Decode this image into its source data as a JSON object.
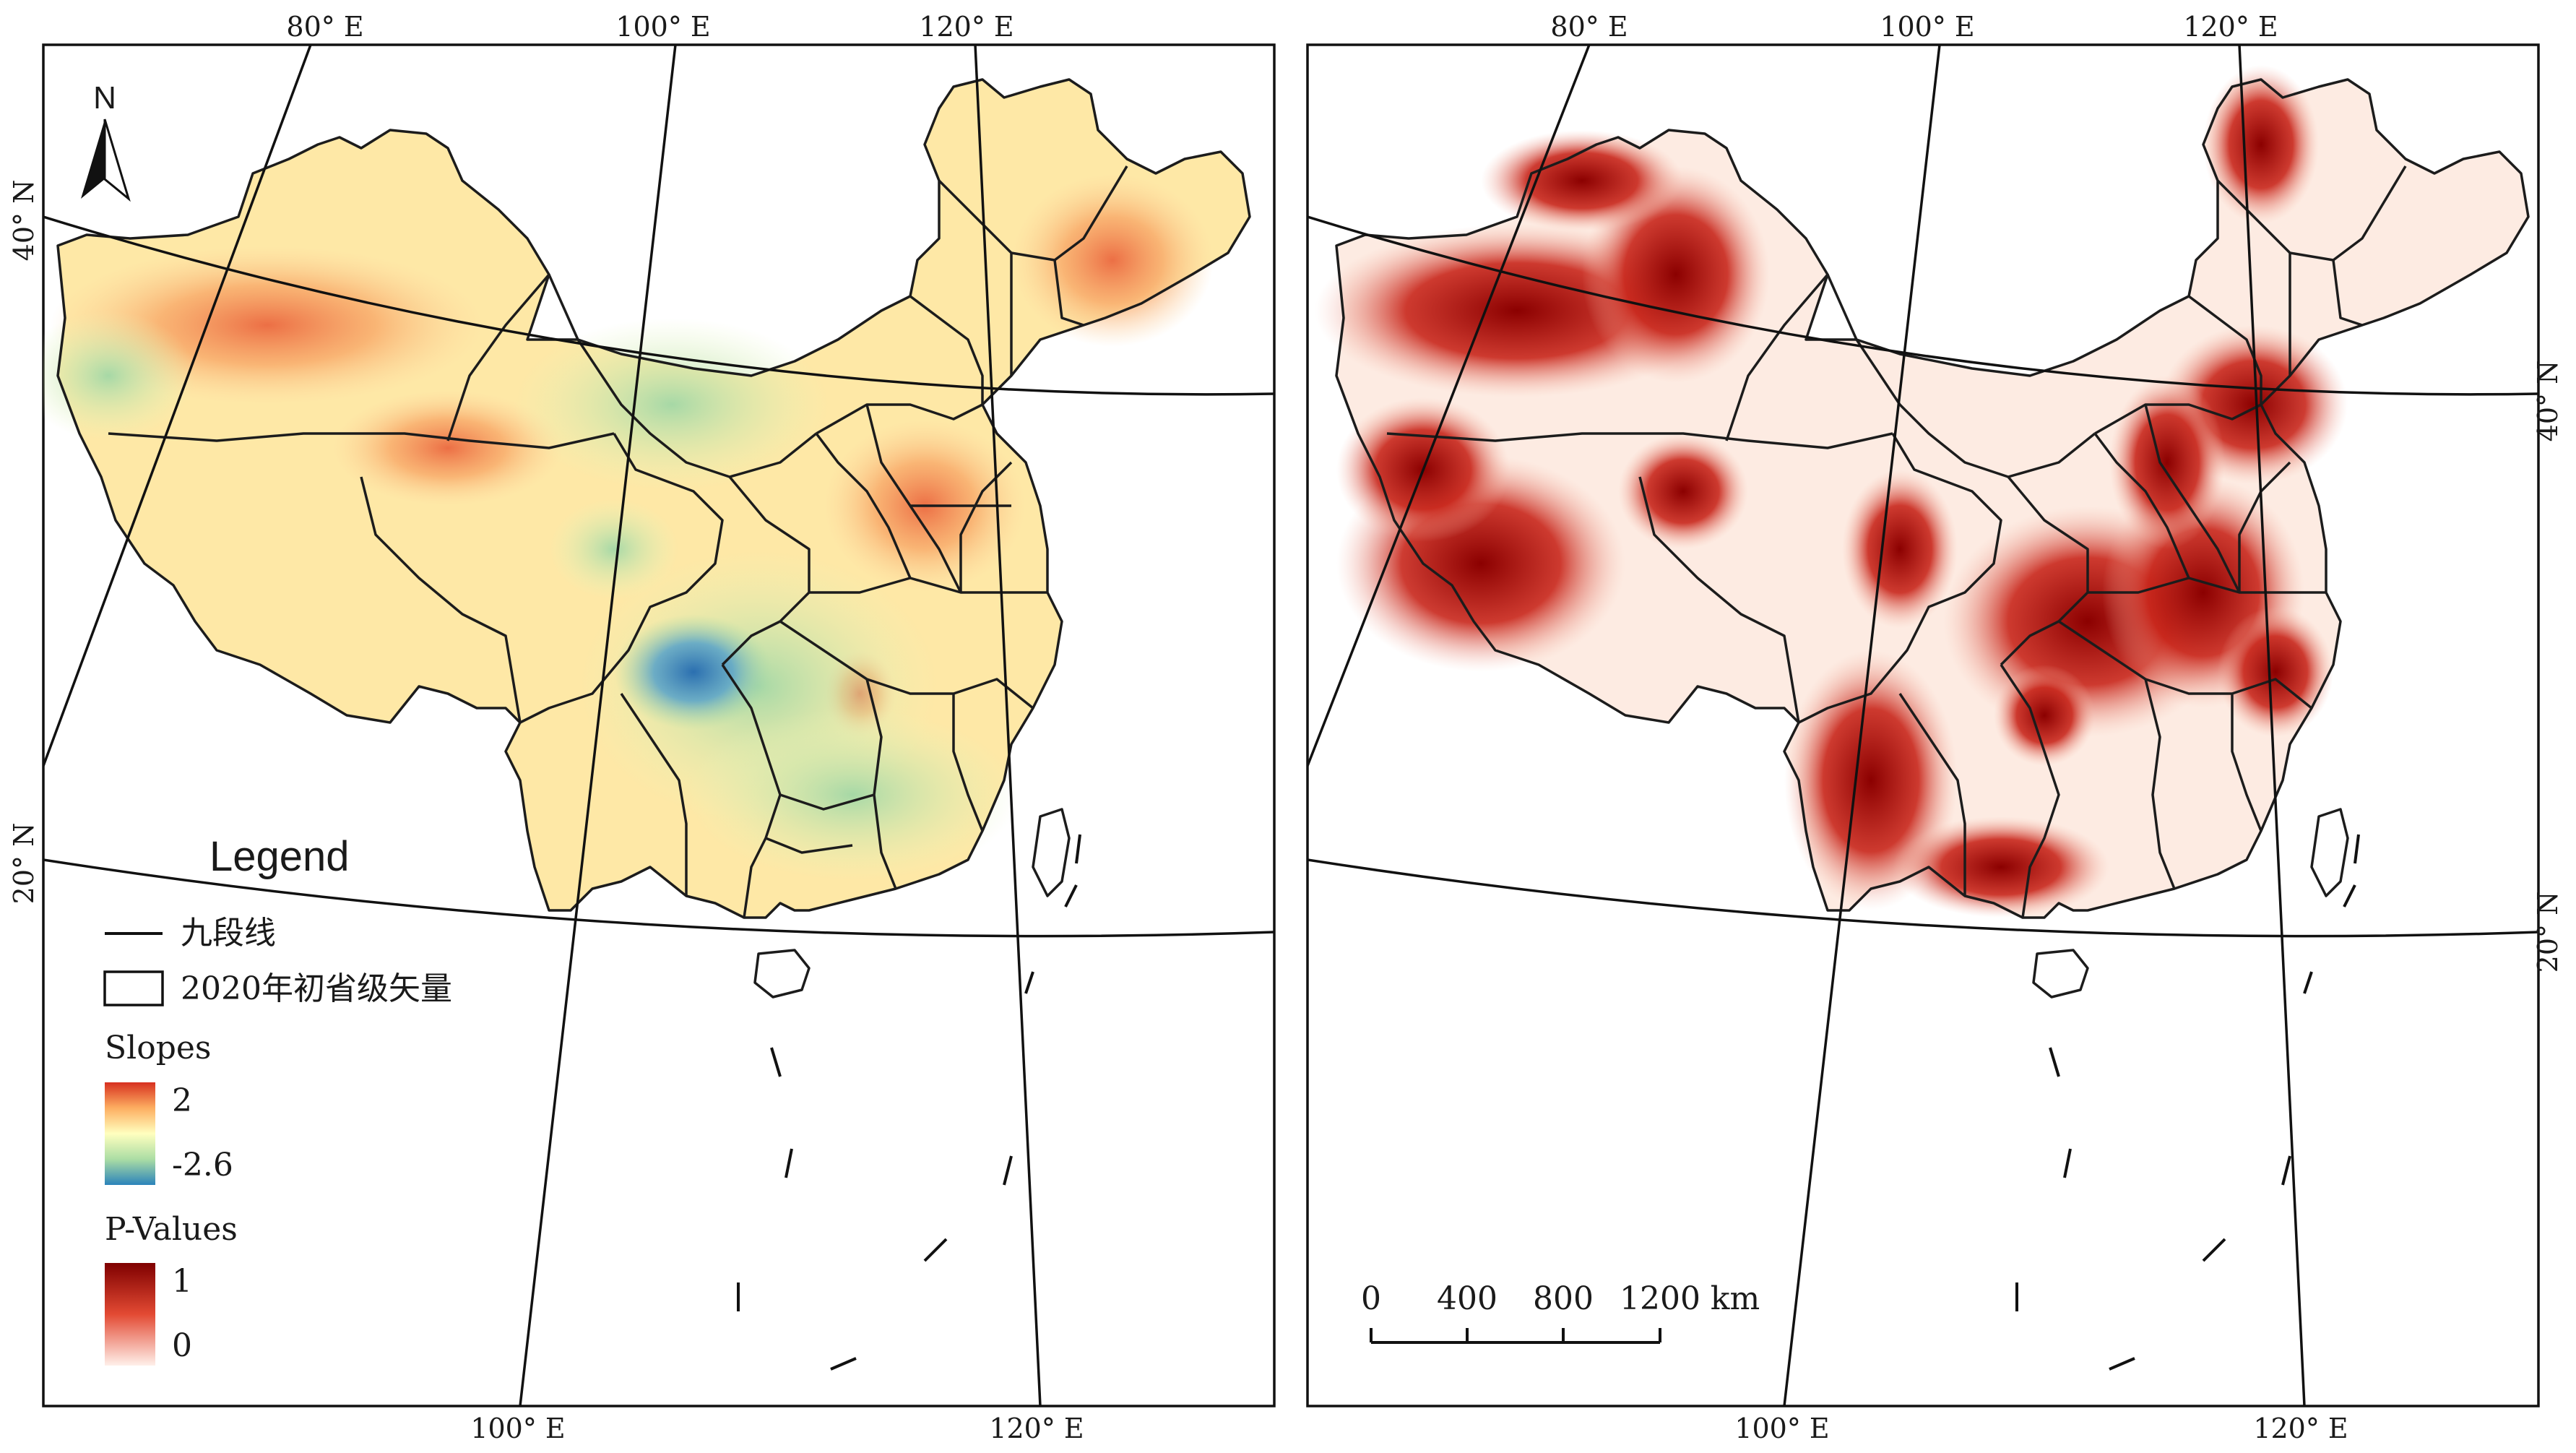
{
  "left_map": {
    "top_labels": [
      "80° E",
      "100° E",
      "120° E"
    ],
    "bottom_labels": [
      "100° E",
      "120° E"
    ],
    "left_labels": [
      "40° N",
      "20° N"
    ],
    "north_arrow": "N",
    "variable": "slope",
    "colors": {
      "high": "#d7301f",
      "mid_high": "#fdae61",
      "mid": "#ffffbf",
      "mid_low": "#abdda4",
      "low": "#2b83ba"
    }
  },
  "right_map": {
    "top_labels": [
      "80° E",
      "100° E",
      "120° E"
    ],
    "bottom_labels": [
      "100° E",
      "120° E"
    ],
    "right_labels": [
      "40° N",
      "20° N"
    ],
    "variable": "p-value",
    "colors": {
      "high": "#8b0000",
      "mid": "#e34a33",
      "low": "#fff0ea"
    },
    "scale_bar": {
      "ticks": [
        "0",
        "400",
        "800",
        "1200"
      ],
      "unit": "km"
    }
  },
  "legend": {
    "title": "Legend",
    "nine_dash_label": "九段线",
    "province_label": "2020年初省级矢量",
    "slopes": {
      "title": "Slopes",
      "max": "2",
      "min": "-2.6"
    },
    "pvalues": {
      "title": "P-Values",
      "max": "1",
      "min": "0"
    }
  }
}
